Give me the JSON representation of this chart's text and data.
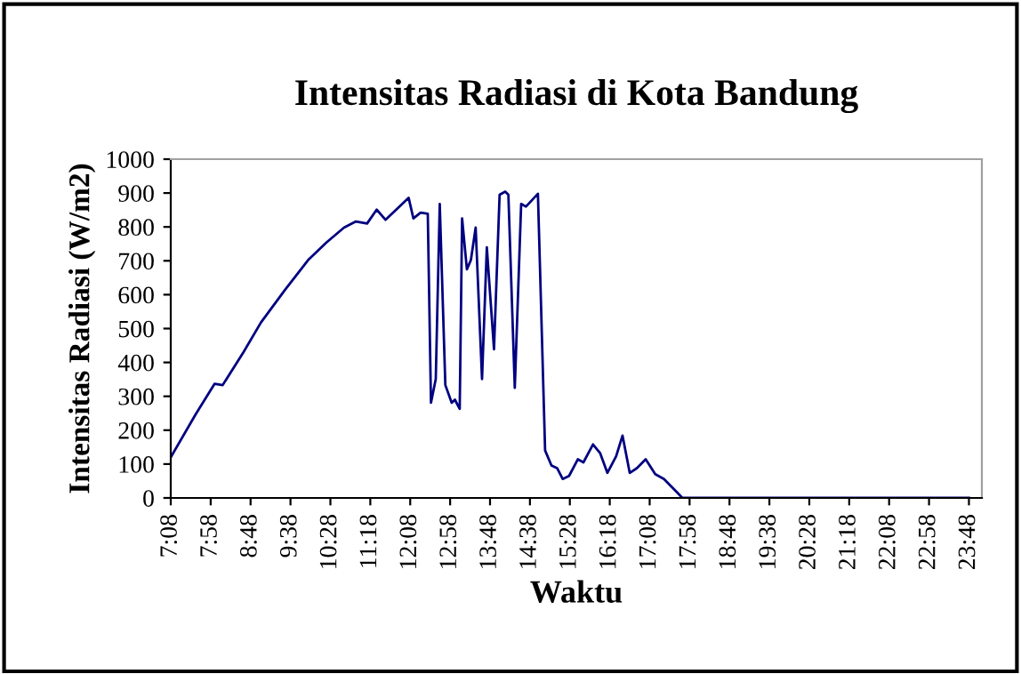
{
  "chart_data": {
    "type": "line",
    "title": "Intensitas Radiasi di Kota Bandung",
    "xlabel": "Waktu",
    "ylabel": "Intensitas Radiasi (W/m2)",
    "x": [
      7.1333,
      7.65,
      8.05,
      8.217,
      8.65,
      9.017,
      9.517,
      10.0,
      10.383,
      10.75,
      11.0,
      11.233,
      11.433,
      11.617,
      12.1,
      12.2,
      12.35,
      12.5,
      12.567,
      12.667,
      12.75,
      12.867,
      13.0,
      13.067,
      13.167,
      13.217,
      13.317,
      13.4,
      13.5,
      13.633,
      13.733,
      13.883,
      14.0,
      14.117,
      14.183,
      14.317,
      14.45,
      14.55,
      14.8,
      14.95,
      15.083,
      15.2,
      15.317,
      15.45,
      15.633,
      15.75,
      15.95,
      16.1,
      16.25,
      16.433,
      16.567,
      16.717,
      16.867,
      17.05,
      17.25,
      17.433,
      17.817,
      23.8
    ],
    "series": [
      {
        "color": "#000080",
        "values": [
          120,
          246,
          337,
          333,
          430,
          518,
          614,
          702,
          754,
          798,
          816,
          810,
          851,
          821,
          886,
          825,
          842,
          839,
          281,
          351,
          868,
          333,
          281,
          290,
          263,
          825,
          675,
          702,
          798,
          351,
          740,
          439,
          895,
          904,
          895,
          325,
          868,
          860,
          898,
          140,
          96,
          88,
          56,
          65,
          114,
          105,
          158,
          132,
          74,
          123,
          184,
          74,
          88,
          114,
          70,
          56,
          0,
          0
        ]
      }
    ],
    "xlim": [
      7.1333,
      24.07
    ],
    "ylim": [
      0,
      1000
    ],
    "yticks": [
      0,
      100,
      200,
      300,
      400,
      500,
      600,
      700,
      800,
      900,
      1000
    ],
    "xticks": [
      {
        "value": 7.1333,
        "label": "7:08"
      },
      {
        "value": 7.9667,
        "label": "7:58"
      },
      {
        "value": 8.8,
        "label": "8:48"
      },
      {
        "value": 9.6333,
        "label": "9:38"
      },
      {
        "value": 10.4667,
        "label": "10:28"
      },
      {
        "value": 11.3,
        "label": "11:18"
      },
      {
        "value": 12.1333,
        "label": "12:08"
      },
      {
        "value": 12.9667,
        "label": "12:58"
      },
      {
        "value": 13.8,
        "label": "13:48"
      },
      {
        "value": 14.6333,
        "label": "14:38"
      },
      {
        "value": 15.4667,
        "label": "15:28"
      },
      {
        "value": 16.3,
        "label": "16:18"
      },
      {
        "value": 17.1333,
        "label": "17:08"
      },
      {
        "value": 17.9667,
        "label": "17:58"
      },
      {
        "value": 18.8,
        "label": "18:48"
      },
      {
        "value": 19.6333,
        "label": "19:38"
      },
      {
        "value": 20.4667,
        "label": "20:28"
      },
      {
        "value": 21.3,
        "label": "21:18"
      },
      {
        "value": 22.1333,
        "label": "22:08"
      },
      {
        "value": 22.9667,
        "label": "22:58"
      },
      {
        "value": 23.8,
        "label": "23:48"
      }
    ],
    "grid": false,
    "legend": false,
    "marker": "none",
    "line_style": "solid"
  }
}
